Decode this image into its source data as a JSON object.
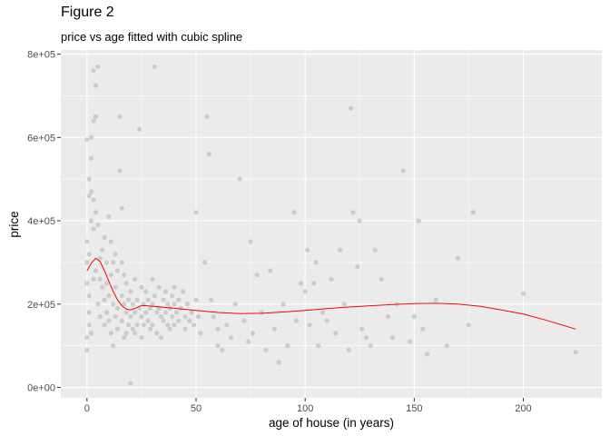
{
  "chart_data": {
    "type": "scatter",
    "title": "Figure 2",
    "subtitle": "price vs age fitted with cubic spline",
    "xlabel": "age of house (in years)",
    "ylabel": "price",
    "xlim": [
      -12,
      236
    ],
    "ylim": [
      -25000,
      810000
    ],
    "x_ticks": [
      0,
      50,
      100,
      150,
      200
    ],
    "x_tick_labels": [
      "0",
      "50",
      "100",
      "150",
      "200"
    ],
    "y_ticks": [
      0,
      200000,
      400000,
      600000,
      800000
    ],
    "y_tick_labels": [
      "0e+00",
      "2e+05",
      "4e+05",
      "6e+05",
      "8e+05"
    ],
    "grid": true,
    "legend": "none",
    "colors": {
      "panel": "#ebebeb",
      "grid_major": "#ffffff",
      "points": "#bebebe",
      "spline": "#ff0000"
    },
    "spline": {
      "name": "",
      "x": [
        0,
        2,
        4,
        6,
        8,
        10,
        12,
        14,
        16,
        18,
        20,
        22,
        25,
        30,
        40,
        50,
        60,
        70,
        80,
        90,
        100,
        110,
        120,
        130,
        140,
        150,
        160,
        170,
        180,
        190,
        200,
        210,
        224
      ],
      "y": [
        280000,
        298000,
        310000,
        302000,
        280000,
        255000,
        230000,
        210000,
        196000,
        188000,
        186000,
        190000,
        197000,
        195000,
        190000,
        185000,
        180000,
        177000,
        178000,
        181000,
        185000,
        189000,
        193000,
        196000,
        199000,
        201000,
        202000,
        200000,
        195000,
        186000,
        176000,
        162000,
        140000
      ]
    },
    "points": [
      [
        0,
        300000
      ],
      [
        0,
        250000
      ],
      [
        0,
        90000
      ],
      [
        0,
        350000
      ],
      [
        1,
        320000
      ],
      [
        1,
        220000
      ],
      [
        1,
        180000
      ],
      [
        2,
        400000
      ],
      [
        1,
        460000
      ],
      [
        0,
        595000
      ],
      [
        2,
        600000
      ],
      [
        3,
        450000
      ],
      [
        4,
        420000
      ],
      [
        5,
        390000
      ],
      [
        1,
        500000
      ],
      [
        2,
        550000
      ],
      [
        3,
        640000
      ],
      [
        4,
        725000
      ],
      [
        3,
        760000
      ],
      [
        5,
        770000
      ],
      [
        4,
        650000
      ],
      [
        2,
        470000
      ],
      [
        3,
        380000
      ],
      [
        0,
        120000
      ],
      [
        1,
        150000
      ],
      [
        2,
        130000
      ],
      [
        3,
        260000
      ],
      [
        4,
        280000
      ],
      [
        5,
        200000
      ],
      [
        6,
        310000
      ],
      [
        6,
        260000
      ],
      [
        6,
        170000
      ],
      [
        7,
        330000
      ],
      [
        7,
        240000
      ],
      [
        8,
        360000
      ],
      [
        8,
        210000
      ],
      [
        8,
        150000
      ],
      [
        9,
        300000
      ],
      [
        9,
        250000
      ],
      [
        9,
        180000
      ],
      [
        10,
        410000
      ],
      [
        10,
        220000
      ],
      [
        10,
        160000
      ],
      [
        11,
        350000
      ],
      [
        11,
        270000
      ],
      [
        11,
        130000
      ],
      [
        12,
        300000
      ],
      [
        12,
        200000
      ],
      [
        12,
        100000
      ],
      [
        13,
        320000
      ],
      [
        13,
        240000
      ],
      [
        13,
        170000
      ],
      [
        14,
        280000
      ],
      [
        14,
        190000
      ],
      [
        14,
        140000
      ],
      [
        15,
        650000
      ],
      [
        15,
        520000
      ],
      [
        16,
        430000
      ],
      [
        16,
        300000
      ],
      [
        16,
        220000
      ],
      [
        16,
        160000
      ],
      [
        17,
        270000
      ],
      [
        17,
        200000
      ],
      [
        17,
        120000
      ],
      [
        18,
        250000
      ],
      [
        18,
        180000
      ],
      [
        18,
        130000
      ],
      [
        19,
        210000
      ],
      [
        19,
        150000
      ],
      [
        20,
        230000
      ],
      [
        20,
        170000
      ],
      [
        20,
        10000
      ],
      [
        21,
        200000
      ],
      [
        21,
        140000
      ],
      [
        22,
        260000
      ],
      [
        22,
        180000
      ],
      [
        22,
        130000
      ],
      [
        23,
        210000
      ],
      [
        23,
        150000
      ],
      [
        24,
        190000
      ],
      [
        24,
        620000
      ],
      [
        25,
        240000
      ],
      [
        25,
        170000
      ],
      [
        25,
        120000
      ],
      [
        26,
        200000
      ],
      [
        26,
        150000
      ],
      [
        27,
        230000
      ],
      [
        27,
        180000
      ],
      [
        28,
        210000
      ],
      [
        28,
        160000
      ],
      [
        29,
        190000
      ],
      [
        29,
        140000
      ],
      [
        30,
        260000
      ],
      [
        30,
        200000
      ],
      [
        30,
        150000
      ],
      [
        31,
        770000
      ],
      [
        31,
        220000
      ],
      [
        32,
        180000
      ],
      [
        32,
        130000
      ],
      [
        33,
        240000
      ],
      [
        33,
        190000
      ],
      [
        34,
        170000
      ],
      [
        34,
        120000
      ],
      [
        35,
        210000
      ],
      [
        35,
        160000
      ],
      [
        36,
        230000
      ],
      [
        36,
        180000
      ],
      [
        37,
        200000
      ],
      [
        37,
        150000
      ],
      [
        38,
        190000
      ],
      [
        38,
        140000
      ],
      [
        39,
        220000
      ],
      [
        39,
        170000
      ],
      [
        40,
        240000
      ],
      [
        40,
        200000
      ],
      [
        40,
        150000
      ],
      [
        41,
        180000
      ],
      [
        42,
        210000
      ],
      [
        42,
        160000
      ],
      [
        43,
        190000
      ],
      [
        44,
        230000
      ],
      [
        45,
        170000
      ],
      [
        45,
        140000
      ],
      [
        46,
        200000
      ],
      [
        47,
        160000
      ],
      [
        48,
        180000
      ],
      [
        49,
        150000
      ],
      [
        50,
        420000
      ],
      [
        50,
        210000
      ],
      [
        51,
        170000
      ],
      [
        52,
        130000
      ],
      [
        54,
        300000
      ],
      [
        55,
        650000
      ],
      [
        56,
        560000
      ],
      [
        57,
        210000
      ],
      [
        58,
        170000
      ],
      [
        60,
        100000
      ],
      [
        60,
        140000
      ],
      [
        62,
        90000
      ],
      [
        64,
        150000
      ],
      [
        66,
        120000
      ],
      [
        68,
        200000
      ],
      [
        70,
        500000
      ],
      [
        72,
        160000
      ],
      [
        74,
        110000
      ],
      [
        75,
        350000
      ],
      [
        76,
        130000
      ],
      [
        78,
        270000
      ],
      [
        80,
        180000
      ],
      [
        82,
        90000
      ],
      [
        84,
        280000
      ],
      [
        86,
        140000
      ],
      [
        88,
        60000
      ],
      [
        90,
        200000
      ],
      [
        92,
        100000
      ],
      [
        95,
        420000
      ],
      [
        96,
        160000
      ],
      [
        98,
        250000
      ],
      [
        100,
        230000
      ],
      [
        101,
        330000
      ],
      [
        102,
        150000
      ],
      [
        104,
        250000
      ],
      [
        105,
        300000
      ],
      [
        106,
        100000
      ],
      [
        108,
        180000
      ],
      [
        110,
        160000
      ],
      [
        112,
        260000
      ],
      [
        114,
        130000
      ],
      [
        116,
        330000
      ],
      [
        118,
        200000
      ],
      [
        120,
        90000
      ],
      [
        121,
        670000
      ],
      [
        122,
        420000
      ],
      [
        124,
        290000
      ],
      [
        125,
        400000
      ],
      [
        126,
        140000
      ],
      [
        128,
        120000
      ],
      [
        130,
        100000
      ],
      [
        132,
        330000
      ],
      [
        135,
        260000
      ],
      [
        138,
        170000
      ],
      [
        140,
        120000
      ],
      [
        142,
        200000
      ],
      [
        145,
        520000
      ],
      [
        148,
        110000
      ],
      [
        150,
        170000
      ],
      [
        152,
        400000
      ],
      [
        154,
        140000
      ],
      [
        156,
        80000
      ],
      [
        160,
        210000
      ],
      [
        165,
        100000
      ],
      [
        170,
        310000
      ],
      [
        175,
        150000
      ],
      [
        177,
        420000
      ],
      [
        200,
        225000
      ],
      [
        224,
        85000
      ]
    ]
  }
}
